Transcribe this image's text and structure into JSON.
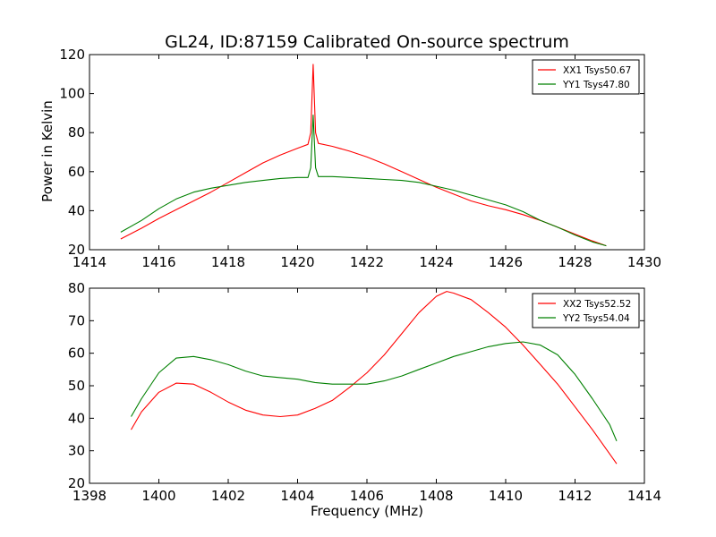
{
  "figure": {
    "title": "GL24, ID:87159 Calibrated On-source spectrum",
    "ylabel": "Power in Kelvin",
    "xlabel": "Frequency (MHz)"
  },
  "chart_data": [
    {
      "type": "line",
      "title": "GL24, ID:87159 Calibrated On-source spectrum",
      "xlabel": "",
      "ylabel": "Power in Kelvin",
      "xlim": [
        1414,
        1430
      ],
      "ylim": [
        20,
        120
      ],
      "xticks": [
        "1414",
        "1416",
        "1418",
        "1420",
        "1422",
        "1424",
        "1426",
        "1428",
        "1430"
      ],
      "yticks": [
        "20",
        "40",
        "60",
        "80",
        "100",
        "120"
      ],
      "grid": false,
      "legend_position": "top-right",
      "series": [
        {
          "name": "XX1 Tsys50.67",
          "color": "#ff0000",
          "x": [
            1414.9,
            1415.5,
            1416,
            1416.5,
            1417,
            1417.5,
            1418,
            1418.5,
            1419,
            1419.5,
            1420,
            1420.3,
            1420.38,
            1420.45,
            1420.52,
            1420.6,
            1421,
            1421.5,
            1422,
            1422.5,
            1423,
            1423.5,
            1424,
            1424.5,
            1425,
            1425.5,
            1426,
            1426.5,
            1427,
            1427.5,
            1428,
            1428.5,
            1428.9
          ],
          "y": [
            25.5,
            31,
            36,
            40.5,
            45,
            49.5,
            54.5,
            59.5,
            64.5,
            68.5,
            72,
            74,
            80,
            115,
            80,
            74.5,
            73,
            70.5,
            67.5,
            64,
            60,
            56,
            52,
            48.5,
            45,
            42.5,
            40.5,
            38,
            35,
            31.5,
            28,
            24.5,
            22
          ]
        },
        {
          "name": "YY1 Tsys47.80",
          "color": "#008000",
          "x": [
            1414.9,
            1415.5,
            1416,
            1416.5,
            1417,
            1417.5,
            1418,
            1418.5,
            1419,
            1419.5,
            1420,
            1420.3,
            1420.38,
            1420.45,
            1420.52,
            1420.6,
            1421,
            1421.5,
            1422,
            1422.5,
            1423,
            1423.5,
            1424,
            1424.5,
            1425,
            1425.5,
            1426,
            1426.5,
            1427,
            1427.5,
            1428,
            1428.5,
            1428.9
          ],
          "y": [
            29,
            35,
            41,
            46,
            49.5,
            51.5,
            53,
            54.5,
            55.5,
            56.5,
            57,
            57,
            62,
            89,
            62,
            57.5,
            57.5,
            57,
            56.5,
            56,
            55.5,
            54.5,
            52.5,
            50.5,
            48,
            45.5,
            43,
            39.5,
            35,
            31.5,
            27.5,
            24,
            22
          ]
        }
      ]
    },
    {
      "type": "line",
      "title": "",
      "xlabel": "Frequency (MHz)",
      "ylabel": "",
      "xlim": [
        1398,
        1414
      ],
      "ylim": [
        20,
        80
      ],
      "xticks": [
        "1398",
        "1400",
        "1402",
        "1404",
        "1406",
        "1408",
        "1410",
        "1412",
        "1414"
      ],
      "yticks": [
        "20",
        "30",
        "40",
        "50",
        "60",
        "70",
        "80"
      ],
      "grid": false,
      "legend_position": "top-right",
      "series": [
        {
          "name": "XX2 Tsys52.52",
          "color": "#ff0000",
          "x": [
            1399.2,
            1399.5,
            1400,
            1400.5,
            1401,
            1401.5,
            1402,
            1402.5,
            1403,
            1403.5,
            1404,
            1404.5,
            1405,
            1405.5,
            1406,
            1406.5,
            1407,
            1407.5,
            1408,
            1408.3,
            1408.5,
            1409,
            1409.5,
            1410,
            1410.5,
            1411,
            1411.5,
            1412,
            1412.5,
            1413,
            1413.2
          ],
          "y": [
            36.5,
            42,
            48,
            50.8,
            50.5,
            48,
            45,
            42.5,
            41,
            40.5,
            41,
            43,
            45.5,
            49.5,
            54,
            59.5,
            66,
            72.5,
            77.5,
            79,
            78.5,
            76.5,
            72.5,
            68,
            62.5,
            56.5,
            50.5,
            43.5,
            36.5,
            29,
            26
          ]
        },
        {
          "name": "YY2 Tsys54.04",
          "color": "#008000",
          "x": [
            1399.2,
            1399.5,
            1400,
            1400.5,
            1401,
            1401.5,
            1402,
            1402.5,
            1403,
            1403.5,
            1404,
            1404.5,
            1405,
            1405.5,
            1406,
            1406.5,
            1407,
            1407.5,
            1408,
            1408.5,
            1409,
            1409.5,
            1410,
            1410.5,
            1411,
            1411.5,
            1412,
            1412.5,
            1413,
            1413.2
          ],
          "y": [
            40.5,
            46,
            54,
            58.5,
            59,
            58,
            56.5,
            54.5,
            53,
            52.5,
            52,
            51,
            50.5,
            50.5,
            50.5,
            51.5,
            53,
            55,
            57,
            59,
            60.5,
            62,
            63,
            63.5,
            62.5,
            59.5,
            53.5,
            46,
            38,
            33
          ]
        }
      ]
    }
  ]
}
